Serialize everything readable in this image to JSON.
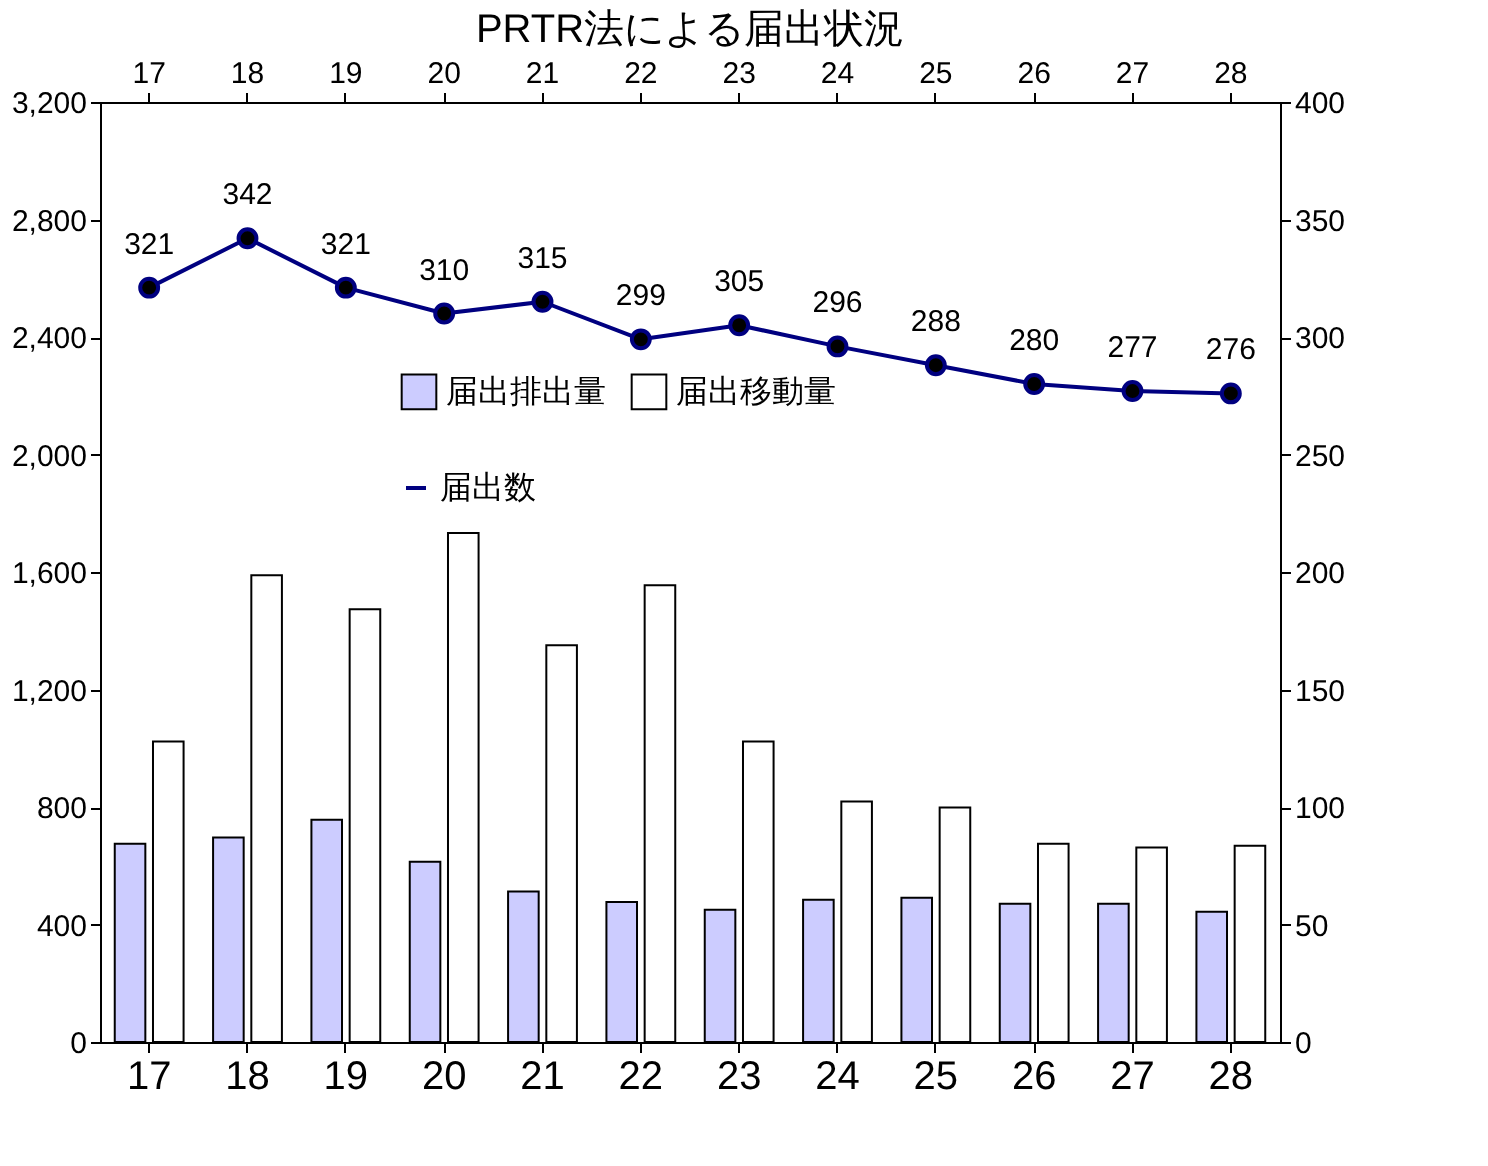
{
  "chart_data": {
    "type": "bar",
    "title": "PRTR法による届出状況",
    "categories": [
      "17",
      "18",
      "19",
      "20",
      "21",
      "22",
      "23",
      "24",
      "25",
      "26",
      "27",
      "28"
    ],
    "series": [
      {
        "name": "届出排出量",
        "color": "#ccccff",
        "values": [
          675,
          696,
          757,
          614,
          512,
          477,
          450,
          484,
          491,
          471,
          471,
          443
        ]
      },
      {
        "name": "届出移動量",
        "color": "#ffffff",
        "values": [
          1023,
          1589,
          1473,
          1733,
          1351,
          1555,
          1023,
          819,
          798,
          675,
          662,
          668
        ]
      },
      {
        "name": "届出数",
        "type": "line",
        "axis": "y2",
        "color": "#000080",
        "values": [
          321,
          342,
          321,
          310,
          315,
          299,
          305,
          296,
          288,
          280,
          277,
          276
        ],
        "value_labels": [
          "321",
          "342",
          "321",
          "310",
          "315",
          "299",
          "305",
          "296",
          "288",
          "280",
          "277",
          "276"
        ]
      }
    ],
    "ylim": [
      0,
      3200
    ],
    "yticks": [
      0,
      400,
      800,
      {
        "value": 1200,
        "label": "1,200"
      },
      {
        "value": 1600,
        "label": "1,600"
      },
      {
        "value": 2000,
        "label": "2,000"
      },
      {
        "value": 2400,
        "label": "2,400"
      },
      {
        "value": 2800,
        "label": "2,800"
      },
      {
        "value": 3200,
        "label": "3,200"
      }
    ],
    "y2lim": [
      0,
      400
    ],
    "y2ticks": [
      0,
      50,
      100,
      150,
      200,
      250,
      300,
      350,
      400
    ],
    "legend": "top",
    "grid": false,
    "marker": "circle",
    "line_style": "solid"
  }
}
